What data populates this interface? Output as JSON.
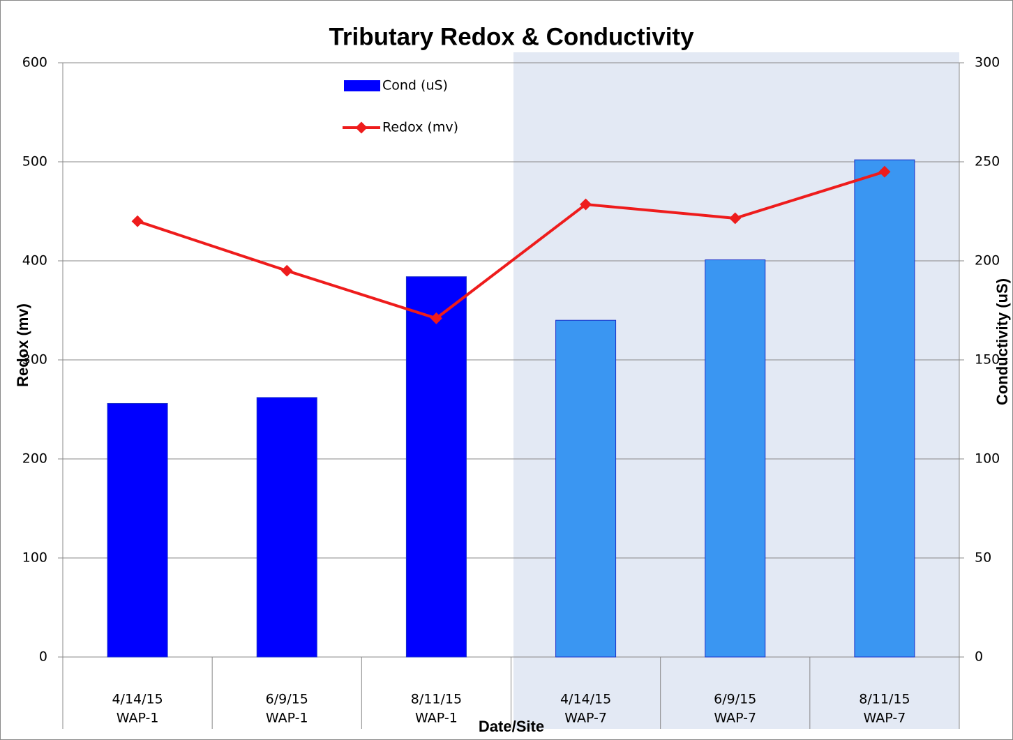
{
  "chart_data": {
    "type": "bar-line",
    "title": "Tributary Redox & Conductivity",
    "x_label": "Date/Site",
    "y_label": "Redox (mv)",
    "y2_label": "Conductivity (uS)",
    "categories": [
      "4/14/15",
      "6/9/15",
      "8/11/15",
      "4/14/15",
      "6/9/15",
      "8/11/15"
    ],
    "category_groups": [
      "WAP-1",
      "WAP-1",
      "WAP-1",
      "WAP-7",
      "WAP-7",
      "WAP-7"
    ],
    "series": [
      {
        "name": "Cond (uS)",
        "type": "bar",
        "axis": "y2",
        "color": "#0000ff",
        "colors": [
          "#0000ff",
          "#0000ff",
          "#0000ff",
          "#3a96f2",
          "#3a96f2",
          "#3a96f2"
        ],
        "values": [
          128,
          131,
          192,
          170,
          200.5,
          251
        ]
      },
      {
        "name": "Redox (mv)",
        "type": "line",
        "axis": "y",
        "color": "#ee1c1c",
        "values": [
          440,
          390,
          342,
          457,
          443,
          490
        ]
      }
    ],
    "ylim": [
      0,
      600
    ],
    "yticks": [
      0,
      100,
      200,
      300,
      400,
      500,
      600
    ],
    "y2lim": [
      0,
      300
    ],
    "y2ticks": [
      0,
      50,
      100,
      150,
      200,
      250,
      300
    ],
    "grid": true
  }
}
